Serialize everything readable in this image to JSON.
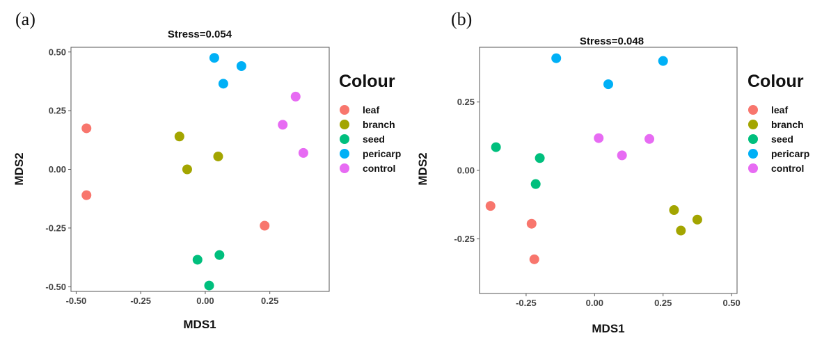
{
  "colors": {
    "leaf": "#F8766D",
    "branch": "#A3A500",
    "seed": "#00BF7D",
    "pericarp": "#00B0F6",
    "control": "#E76BF3"
  },
  "legend": {
    "title": "Colour",
    "entries": [
      "leaf",
      "branch",
      "seed",
      "pericarp",
      "control"
    ]
  },
  "chart_data": [
    {
      "type": "scatter",
      "panel": "(a)",
      "title": "Stress=0.054",
      "xlabel": "MDS1",
      "ylabel": "MDS2",
      "xlim": [
        -0.52,
        0.48
      ],
      "ylim": [
        -0.52,
        0.52
      ],
      "xticks": [
        -0.5,
        -0.25,
        0,
        0.25
      ],
      "xtick_labels": [
        "-0.50",
        "-0.25",
        "0.00",
        "0.25"
      ],
      "yticks": [
        -0.5,
        -0.25,
        0,
        0.25,
        0.5
      ],
      "ytick_labels": [
        "-0.50",
        "-0.25",
        "0.00",
        "0.25",
        "0.50"
      ],
      "legend_position": "right",
      "series": [
        {
          "name": "leaf",
          "points": [
            [
              -0.46,
              0.175
            ],
            [
              -0.46,
              -0.11
            ],
            [
              0.23,
              -0.24
            ]
          ]
        },
        {
          "name": "branch",
          "points": [
            [
              -0.1,
              0.14
            ],
            [
              -0.07,
              0.0
            ],
            [
              0.05,
              0.055
            ]
          ]
        },
        {
          "name": "seed",
          "points": [
            [
              -0.03,
              -0.385
            ],
            [
              0.055,
              -0.365
            ],
            [
              0.015,
              -0.495
            ]
          ]
        },
        {
          "name": "pericarp",
          "points": [
            [
              0.035,
              0.475
            ],
            [
              0.07,
              0.365
            ],
            [
              0.14,
              0.44
            ]
          ]
        },
        {
          "name": "control",
          "points": [
            [
              0.35,
              0.31
            ],
            [
              0.3,
              0.19
            ],
            [
              0.38,
              0.07
            ]
          ]
        }
      ]
    },
    {
      "type": "scatter",
      "panel": "(b)",
      "title": "Stress=0.048",
      "xlabel": "MDS1",
      "ylabel": "MDS2",
      "xlim": [
        -0.42,
        0.52
      ],
      "ylim": [
        -0.45,
        0.45
      ],
      "xticks": [
        -0.25,
        0,
        0.25,
        0.5
      ],
      "xtick_labels": [
        "-0.25",
        "0.00",
        "0.25",
        "0.50"
      ],
      "yticks": [
        -0.25,
        0,
        0.25
      ],
      "ytick_labels": [
        "-0.25",
        "0.00",
        "0.25"
      ],
      "legend_position": "right",
      "series": [
        {
          "name": "leaf",
          "points": [
            [
              -0.38,
              -0.13
            ],
            [
              -0.23,
              -0.195
            ],
            [
              -0.22,
              -0.325
            ]
          ]
        },
        {
          "name": "branch",
          "points": [
            [
              0.29,
              -0.145
            ],
            [
              0.315,
              -0.22
            ],
            [
              0.375,
              -0.18
            ]
          ]
        },
        {
          "name": "seed",
          "points": [
            [
              -0.36,
              0.085
            ],
            [
              -0.2,
              0.045
            ],
            [
              -0.215,
              -0.05
            ]
          ]
        },
        {
          "name": "pericarp",
          "points": [
            [
              -0.14,
              0.41
            ],
            [
              0.05,
              0.315
            ],
            [
              0.25,
              0.4
            ]
          ]
        },
        {
          "name": "control",
          "points": [
            [
              0.015,
              0.118
            ],
            [
              0.1,
              0.055
            ],
            [
              0.2,
              0.115
            ]
          ]
        }
      ]
    }
  ]
}
